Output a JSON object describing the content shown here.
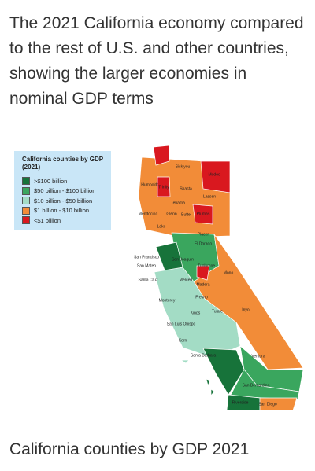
{
  "title": "The 2021 California economy compared to the rest of U.S. and other countries, showing the larger economies in nominal GDP terms",
  "map": {
    "legend": {
      "title": [
        "California counties by GDP",
        "(2021)"
      ],
      "items": [
        {
          "label": ">$100 billion",
          "color": "#17733a"
        },
        {
          "label": "$50 billion - $100 billion",
          "color": "#3aa65e"
        },
        {
          "label": "$10 billion - $50 billion",
          "color": "#a3dcc5"
        },
        {
          "label": "$1 billion - $10 billion",
          "color": "#f28c38"
        },
        {
          "label": "<$1 billion",
          "color": "#d9181f"
        }
      ]
    },
    "county_labels": [
      "Siskiyou",
      "Modoc",
      "Humboldt",
      "Trinity",
      "Shasta",
      "Lassen",
      "Tehama",
      "Plumas",
      "Mendocino",
      "Glenn",
      "Butte",
      "Lake",
      "Placer",
      "El Dorado",
      "San Francisco",
      "San Mateo",
      "Santa Cruz",
      "San Joaquin",
      "Tuolumne",
      "Mono",
      "Merced",
      "Madera",
      "Monterey",
      "Fresno",
      "Tulare",
      "Inyo",
      "Kings",
      "San Luis Obispo",
      "Kern",
      "Santa Barbara",
      "Ventura",
      "San Bernardino",
      "Riverside",
      "San Diego",
      "Imperial"
    ]
  },
  "caption": "California counties by GDP 2021"
}
